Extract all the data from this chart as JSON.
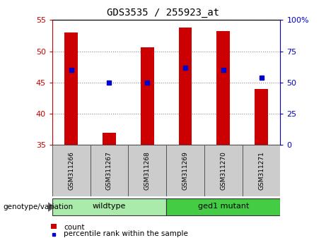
{
  "title": "GDS3535 / 255923_at",
  "samples": [
    "GSM311266",
    "GSM311267",
    "GSM311268",
    "GSM311269",
    "GSM311270",
    "GSM311271"
  ],
  "counts": [
    53.0,
    37.0,
    50.6,
    53.8,
    53.2,
    44.0
  ],
  "percentiles_right": [
    60.0,
    50.0,
    50.0,
    62.0,
    60.0,
    54.0
  ],
  "ylim_left": [
    35,
    55
  ],
  "ylim_right": [
    0,
    100
  ],
  "yticks_left": [
    35,
    40,
    45,
    50,
    55
  ],
  "yticks_right": [
    0,
    25,
    50,
    75,
    100
  ],
  "ytick_labels_right": [
    "0",
    "25",
    "50",
    "75",
    "100%"
  ],
  "bar_color": "#cc0000",
  "dot_color": "#0000cc",
  "bar_bottom": 35,
  "groups": [
    {
      "label": "wildtype",
      "indices": [
        0,
        1,
        2
      ],
      "color": "#aaeaaa"
    },
    {
      "label": "ged1 mutant",
      "indices": [
        3,
        4,
        5
      ],
      "color": "#44cc44"
    }
  ],
  "group_label_prefix": "genotype/variation",
  "legend_count_label": "count",
  "legend_percentile_label": "percentile rank within the sample",
  "title_fontsize": 10,
  "tick_fontsize": 8,
  "label_fontsize": 8
}
